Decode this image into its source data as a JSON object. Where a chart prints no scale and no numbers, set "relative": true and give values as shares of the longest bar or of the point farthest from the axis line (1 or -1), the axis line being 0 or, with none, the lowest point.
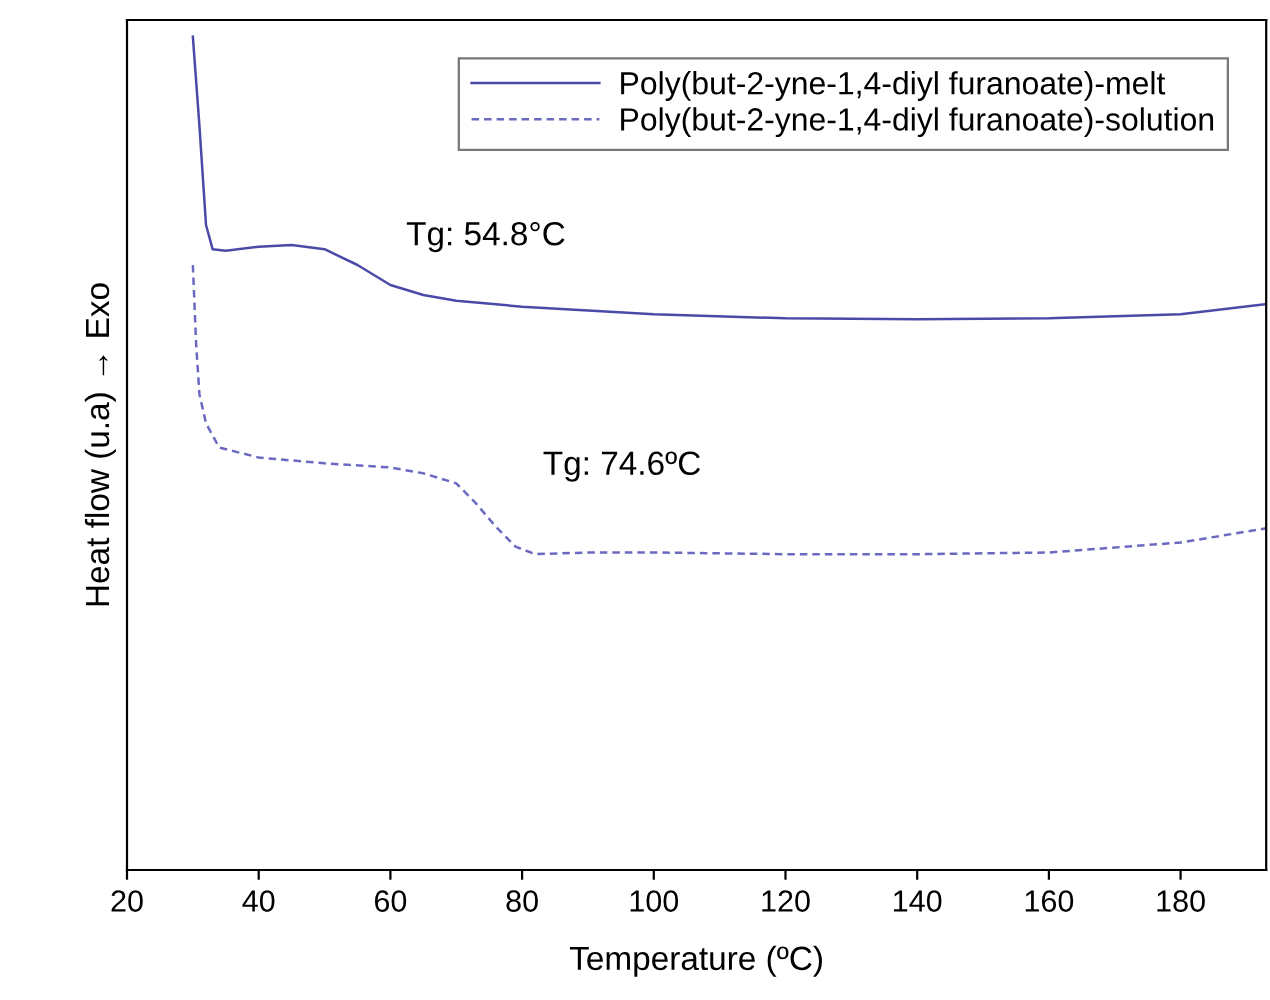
{
  "chart_data": {
    "type": "line",
    "relative": true,
    "xlabel": "Temperature (ºC)",
    "ylabel": "Heat flow (u.a) → Exo",
    "xlim": [
      20,
      193
    ],
    "xticks": [
      20,
      40,
      60,
      80,
      100,
      120,
      140,
      160,
      180
    ],
    "legend": "top right",
    "grid": false,
    "series": [
      {
        "name": "Poly(but-2-yne-1,4-diyl furanoate)-melt",
        "color": "#4a4aa8",
        "line_style": "solid",
        "x": [
          30,
          31,
          32,
          33,
          35,
          40,
          45,
          50,
          55,
          60,
          65,
          70,
          80,
          100,
          120,
          140,
          160,
          180,
          193
        ],
        "values": [
          1.0,
          0.893,
          0.774,
          0.745,
          0.743,
          0.748,
          0.75,
          0.745,
          0.726,
          0.702,
          0.69,
          0.683,
          0.676,
          0.667,
          0.662,
          0.661,
          0.662,
          0.667,
          0.679
        ]
      },
      {
        "name": "Poly(but-2-yne-1,4-diyl furanoate)-solution",
        "color": "#6a6ac0",
        "line_style": "dashed",
        "x": [
          30,
          30.5,
          31,
          32,
          34,
          40,
          50,
          60,
          65,
          70,
          73,
          76,
          79,
          82,
          90,
          100,
          120,
          140,
          160,
          180,
          193
        ],
        "values": [
          0.726,
          0.631,
          0.571,
          0.536,
          0.507,
          0.495,
          0.488,
          0.483,
          0.476,
          0.464,
          0.44,
          0.412,
          0.388,
          0.379,
          0.381,
          0.381,
          0.379,
          0.379,
          0.381,
          0.393,
          0.41
        ]
      }
    ],
    "annotations": [
      "Tg: 54.8°C",
      "Tg: 74.6ºC"
    ]
  }
}
